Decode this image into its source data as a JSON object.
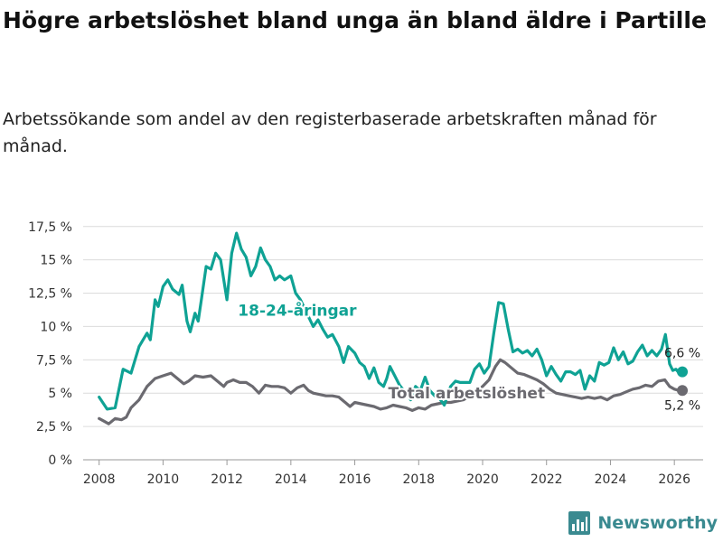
{
  "title": "Högre arbetslöshet bland unga än bland äldre i Partille",
  "subtitle": "Arbetssökande som andel av den registerbaserade arbetskraften månad för månad.",
  "brand": {
    "name": "Newsworthy",
    "icon": "bar-chart-logo-icon",
    "color": "#3a8a90"
  },
  "chart_data": {
    "type": "line",
    "title": "Högre arbetslöshet bland unga än bland äldre i Partille",
    "subtitle": "Arbetssökande som andel av den registerbaserade arbetskraften månad för månad.",
    "xlabel": "",
    "ylabel": "",
    "xlim": [
      2007.5,
      2026.9
    ],
    "ylim": [
      0,
      18.5
    ],
    "x_ticks": [
      2008,
      2010,
      2012,
      2014,
      2016,
      2018,
      2020,
      2022,
      2024,
      2026
    ],
    "x_tick_labels": [
      "2008",
      "2010",
      "2012",
      "2014",
      "2016",
      "2018",
      "2020",
      "2022",
      "2024",
      "2026"
    ],
    "y_ticks": [
      0,
      2.5,
      5,
      7.5,
      10,
      12.5,
      15,
      17.5
    ],
    "y_tick_labels": [
      "0 %",
      "2,5 %",
      "5 %",
      "7,5 %",
      "10 %",
      "12,5 %",
      "15 %",
      "17,5 %"
    ],
    "grid": "horizontal",
    "series": [
      {
        "name": "18-24-åringar",
        "color": "#0fa294",
        "end_label": "6,6 %",
        "points": [
          [
            2008.0,
            4.7
          ],
          [
            2008.25,
            3.8
          ],
          [
            2008.5,
            3.9
          ],
          [
            2008.75,
            6.8
          ],
          [
            2009.0,
            6.5
          ],
          [
            2009.25,
            8.5
          ],
          [
            2009.5,
            9.5
          ],
          [
            2009.6,
            9.0
          ],
          [
            2009.75,
            12.0
          ],
          [
            2009.85,
            11.5
          ],
          [
            2010.0,
            13.0
          ],
          [
            2010.15,
            13.5
          ],
          [
            2010.3,
            12.8
          ],
          [
            2010.5,
            12.4
          ],
          [
            2010.6,
            13.1
          ],
          [
            2010.75,
            10.4
          ],
          [
            2010.85,
            9.6
          ],
          [
            2011.0,
            11.0
          ],
          [
            2011.1,
            10.4
          ],
          [
            2011.2,
            12.0
          ],
          [
            2011.35,
            14.5
          ],
          [
            2011.5,
            14.3
          ],
          [
            2011.65,
            15.5
          ],
          [
            2011.8,
            15.0
          ],
          [
            2012.0,
            12.0
          ],
          [
            2012.15,
            15.5
          ],
          [
            2012.3,
            17.0
          ],
          [
            2012.45,
            15.8
          ],
          [
            2012.6,
            15.2
          ],
          [
            2012.75,
            13.8
          ],
          [
            2012.9,
            14.5
          ],
          [
            2013.05,
            15.9
          ],
          [
            2013.2,
            15.0
          ],
          [
            2013.35,
            14.5
          ],
          [
            2013.5,
            13.5
          ],
          [
            2013.65,
            13.8
          ],
          [
            2013.8,
            13.5
          ],
          [
            2014.0,
            13.8
          ],
          [
            2014.15,
            12.5
          ],
          [
            2014.3,
            12.0
          ],
          [
            2014.5,
            11.0
          ],
          [
            2014.7,
            10.0
          ],
          [
            2014.85,
            10.5
          ],
          [
            2015.0,
            9.8
          ],
          [
            2015.15,
            9.2
          ],
          [
            2015.3,
            9.4
          ],
          [
            2015.5,
            8.5
          ],
          [
            2015.65,
            7.3
          ],
          [
            2015.8,
            8.5
          ],
          [
            2016.0,
            8.0
          ],
          [
            2016.15,
            7.3
          ],
          [
            2016.3,
            7.0
          ],
          [
            2016.45,
            6.1
          ],
          [
            2016.6,
            6.9
          ],
          [
            2016.75,
            5.8
          ],
          [
            2016.9,
            5.5
          ],
          [
            2017.0,
            6.1
          ],
          [
            2017.1,
            7.0
          ],
          [
            2017.25,
            6.3
          ],
          [
            2017.4,
            5.6
          ],
          [
            2017.6,
            5.0
          ],
          [
            2017.75,
            4.5
          ],
          [
            2017.9,
            5.5
          ],
          [
            2018.05,
            5.2
          ],
          [
            2018.2,
            6.2
          ],
          [
            2018.35,
            5.2
          ],
          [
            2018.5,
            4.8
          ],
          [
            2018.65,
            4.6
          ],
          [
            2018.8,
            4.1
          ],
          [
            2019.0,
            5.5
          ],
          [
            2019.15,
            5.9
          ],
          [
            2019.3,
            5.8
          ],
          [
            2019.45,
            5.8
          ],
          [
            2019.6,
            5.8
          ],
          [
            2019.75,
            6.8
          ],
          [
            2019.9,
            7.2
          ],
          [
            2020.05,
            6.5
          ],
          [
            2020.2,
            7.0
          ],
          [
            2020.35,
            9.5
          ],
          [
            2020.5,
            11.8
          ],
          [
            2020.65,
            11.7
          ],
          [
            2020.8,
            9.8
          ],
          [
            2020.95,
            8.1
          ],
          [
            2021.1,
            8.3
          ],
          [
            2021.25,
            8.0
          ],
          [
            2021.4,
            8.2
          ],
          [
            2021.55,
            7.8
          ],
          [
            2021.7,
            8.3
          ],
          [
            2021.85,
            7.5
          ],
          [
            2022.0,
            6.3
          ],
          [
            2022.15,
            7.0
          ],
          [
            2022.3,
            6.4
          ],
          [
            2022.45,
            5.9
          ],
          [
            2022.6,
            6.6
          ],
          [
            2022.75,
            6.6
          ],
          [
            2022.9,
            6.4
          ],
          [
            2023.05,
            6.7
          ],
          [
            2023.2,
            5.3
          ],
          [
            2023.35,
            6.3
          ],
          [
            2023.5,
            5.9
          ],
          [
            2023.65,
            7.3
          ],
          [
            2023.8,
            7.1
          ],
          [
            2023.95,
            7.3
          ],
          [
            2024.1,
            8.4
          ],
          [
            2024.25,
            7.5
          ],
          [
            2024.4,
            8.1
          ],
          [
            2024.55,
            7.2
          ],
          [
            2024.7,
            7.4
          ],
          [
            2024.85,
            8.1
          ],
          [
            2025.0,
            8.6
          ],
          [
            2025.15,
            7.8
          ],
          [
            2025.3,
            8.2
          ],
          [
            2025.45,
            7.8
          ],
          [
            2025.6,
            8.3
          ],
          [
            2025.72,
            9.4
          ],
          [
            2025.85,
            7.2
          ],
          [
            2025.95,
            6.7
          ],
          [
            2026.05,
            6.8
          ],
          [
            2026.15,
            6.5
          ],
          [
            2026.25,
            6.6
          ]
        ]
      },
      {
        "name": "Total arbetslöshet",
        "color": "#6b6a70",
        "end_label": "5,2 %",
        "points": [
          [
            2008.0,
            3.1
          ],
          [
            2008.15,
            2.9
          ],
          [
            2008.3,
            2.7
          ],
          [
            2008.5,
            3.1
          ],
          [
            2008.7,
            3.0
          ],
          [
            2008.85,
            3.2
          ],
          [
            2009.0,
            3.9
          ],
          [
            2009.25,
            4.5
          ],
          [
            2009.5,
            5.5
          ],
          [
            2009.75,
            6.1
          ],
          [
            2010.0,
            6.3
          ],
          [
            2010.25,
            6.5
          ],
          [
            2010.5,
            6.0
          ],
          [
            2010.65,
            5.7
          ],
          [
            2010.8,
            5.9
          ],
          [
            2011.0,
            6.3
          ],
          [
            2011.25,
            6.2
          ],
          [
            2011.5,
            6.3
          ],
          [
            2011.75,
            5.8
          ],
          [
            2011.9,
            5.5
          ],
          [
            2012.0,
            5.8
          ],
          [
            2012.2,
            6.0
          ],
          [
            2012.4,
            5.8
          ],
          [
            2012.6,
            5.8
          ],
          [
            2012.8,
            5.5
          ],
          [
            2013.0,
            5.0
          ],
          [
            2013.2,
            5.6
          ],
          [
            2013.4,
            5.5
          ],
          [
            2013.6,
            5.5
          ],
          [
            2013.8,
            5.4
          ],
          [
            2014.0,
            5.0
          ],
          [
            2014.2,
            5.4
          ],
          [
            2014.4,
            5.6
          ],
          [
            2014.55,
            5.2
          ],
          [
            2014.7,
            5.0
          ],
          [
            2014.9,
            4.9
          ],
          [
            2015.1,
            4.8
          ],
          [
            2015.3,
            4.8
          ],
          [
            2015.5,
            4.7
          ],
          [
            2015.7,
            4.3
          ],
          [
            2015.85,
            4.0
          ],
          [
            2016.0,
            4.3
          ],
          [
            2016.2,
            4.2
          ],
          [
            2016.4,
            4.1
          ],
          [
            2016.6,
            4.0
          ],
          [
            2016.8,
            3.8
          ],
          [
            2017.0,
            3.9
          ],
          [
            2017.2,
            4.1
          ],
          [
            2017.4,
            4.0
          ],
          [
            2017.6,
            3.9
          ],
          [
            2017.8,
            3.7
          ],
          [
            2018.0,
            3.9
          ],
          [
            2018.2,
            3.8
          ],
          [
            2018.4,
            4.1
          ],
          [
            2018.6,
            4.2
          ],
          [
            2018.8,
            4.3
          ],
          [
            2019.0,
            4.3
          ],
          [
            2019.2,
            4.4
          ],
          [
            2019.4,
            4.5
          ],
          [
            2019.6,
            4.8
          ],
          [
            2019.8,
            5.2
          ],
          [
            2020.0,
            5.5
          ],
          [
            2020.2,
            6.0
          ],
          [
            2020.4,
            7.0
          ],
          [
            2020.55,
            7.5
          ],
          [
            2020.7,
            7.3
          ],
          [
            2020.9,
            6.9
          ],
          [
            2021.1,
            6.5
          ],
          [
            2021.3,
            6.4
          ],
          [
            2021.5,
            6.2
          ],
          [
            2021.7,
            6.0
          ],
          [
            2021.9,
            5.7
          ],
          [
            2022.1,
            5.3
          ],
          [
            2022.3,
            5.0
          ],
          [
            2022.5,
            4.9
          ],
          [
            2022.7,
            4.8
          ],
          [
            2022.9,
            4.7
          ],
          [
            2023.1,
            4.6
          ],
          [
            2023.3,
            4.7
          ],
          [
            2023.5,
            4.6
          ],
          [
            2023.7,
            4.7
          ],
          [
            2023.9,
            4.5
          ],
          [
            2024.1,
            4.8
          ],
          [
            2024.3,
            4.9
          ],
          [
            2024.5,
            5.1
          ],
          [
            2024.7,
            5.3
          ],
          [
            2024.9,
            5.4
          ],
          [
            2025.1,
            5.6
          ],
          [
            2025.3,
            5.5
          ],
          [
            2025.5,
            5.9
          ],
          [
            2025.7,
            6.0
          ],
          [
            2025.85,
            5.5
          ],
          [
            2026.0,
            5.3
          ],
          [
            2026.15,
            5.2
          ],
          [
            2026.25,
            5.2
          ]
        ]
      }
    ],
    "annotations": [
      {
        "text": "18-24-åringar",
        "series": 0,
        "x": 2014.2,
        "y": 10.8
      },
      {
        "text": "Total arbetslöshet",
        "series": 1,
        "x": 2019.5,
        "y": 4.6
      }
    ]
  }
}
